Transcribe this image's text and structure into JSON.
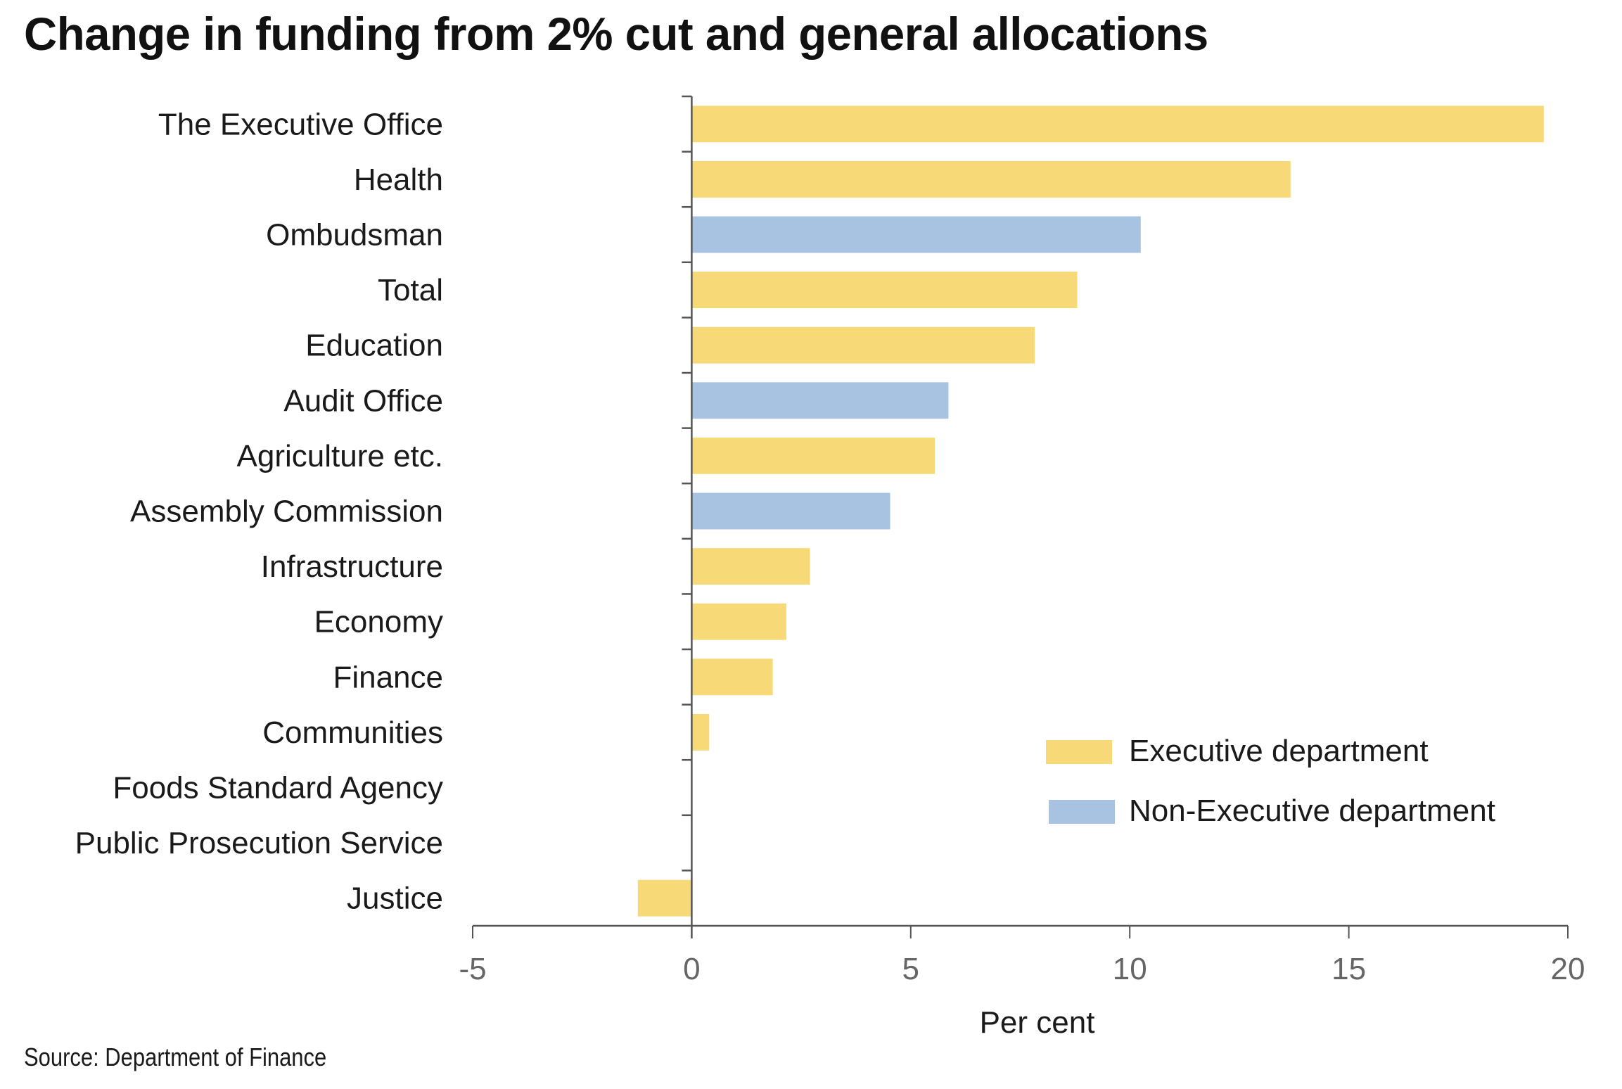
{
  "chart_data": {
    "type": "bar",
    "orientation": "horizontal",
    "title": "Change in funding from 2% cut and general allocations",
    "xlabel": "Per cent",
    "ylabel": "",
    "xlim": [
      -5,
      20
    ],
    "xticks": [
      -5,
      0,
      5,
      10,
      15,
      20
    ],
    "grid": false,
    "legend_position": "bottom-right",
    "categories": [
      "The Executive Office",
      "Health",
      "Ombudsman",
      "Total",
      "Education",
      "Audit Office",
      "Agriculture etc.",
      "Assembly Commission",
      "Infrastructure",
      "Economy",
      "Finance",
      "Communities",
      "Foods Standard Agency",
      "Public Prosecution Service",
      "Justice"
    ],
    "values": [
      19.45,
      13.67,
      10.25,
      8.8,
      7.83,
      5.86,
      5.55,
      4.53,
      2.7,
      2.16,
      1.85,
      0.4,
      0,
      0,
      -1.23
    ],
    "groups": [
      "Executive department",
      "Executive department",
      "Non-Executive department",
      "Executive department",
      "Executive department",
      "Non-Executive department",
      "Executive department",
      "Non-Executive department",
      "Executive department",
      "Executive department",
      "Executive department",
      "Executive department",
      "Executive department",
      "Executive department",
      "Executive department"
    ],
    "legend": [
      {
        "name": "Executive department",
        "color": "#f8d978"
      },
      {
        "name": "Non-Executive department",
        "color": "#a7c3e1"
      }
    ]
  },
  "source": "Source: Department of Finance",
  "colors": {
    "axis": "#555555",
    "tick_label": "#666666",
    "text": "#1a1a1a"
  }
}
